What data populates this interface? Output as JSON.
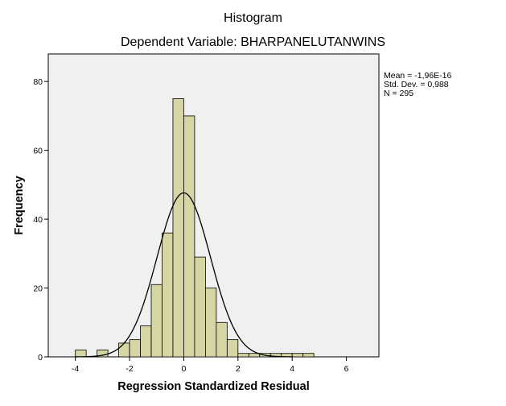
{
  "chart_data": {
    "type": "bar",
    "title": "Histogram",
    "subtitle": "Dependent Variable: BHARPANELUTANWINS",
    "xlabel": "Regression Standardized Residual",
    "ylabel": "Frequency",
    "stats": [
      "Mean = -1,96E-16",
      "Std. Dev. = 0,988",
      "N = 295"
    ],
    "xlim": [
      -5.0,
      7.2
    ],
    "ylim": [
      0,
      88
    ],
    "xticks": [
      -4,
      -2,
      0,
      2,
      4,
      6
    ],
    "xtick_labels": [
      "-4",
      "-2",
      "0",
      "2",
      "4",
      "6"
    ],
    "yticks": [
      0,
      20,
      40,
      60,
      80
    ],
    "ytick_labels": [
      "0",
      "20",
      "40",
      "60",
      "80"
    ],
    "bin_width": 0.4,
    "bins": [
      {
        "start": -4.0,
        "value": 2
      },
      {
        "start": -3.2,
        "value": 2
      },
      {
        "start": -2.4,
        "value": 4
      },
      {
        "start": -2.0,
        "value": 5
      },
      {
        "start": -1.6,
        "value": 9
      },
      {
        "start": -1.2,
        "value": 21
      },
      {
        "start": -0.8,
        "value": 36
      },
      {
        "start": -0.4,
        "value": 75
      },
      {
        "start": 0.0,
        "value": 70
      },
      {
        "start": 0.4,
        "value": 29
      },
      {
        "start": 0.8,
        "value": 20
      },
      {
        "start": 1.2,
        "value": 10
      },
      {
        "start": 1.6,
        "value": 5
      },
      {
        "start": 2.0,
        "value": 1
      },
      {
        "start": 2.4,
        "value": 1
      },
      {
        "start": 2.8,
        "value": 1
      },
      {
        "start": 3.2,
        "value": 1
      },
      {
        "start": 3.6,
        "value": 1
      },
      {
        "start": 4.0,
        "value": 1
      },
      {
        "start": 4.4,
        "value": 1
      }
    ],
    "normal_curve": {
      "mean": 0,
      "sd": 0.988,
      "n": 295
    },
    "colors": {
      "bar_fill": "#d6d5a4",
      "bar_stroke": "#000000",
      "plot_bg": "#f0f0f0",
      "curve": "#000000"
    },
    "grid": false,
    "legend": "none"
  }
}
